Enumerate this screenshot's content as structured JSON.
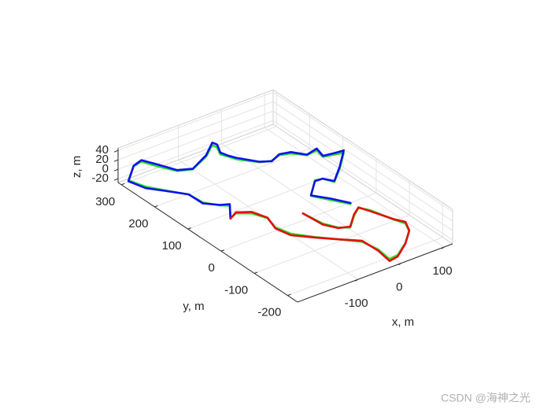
{
  "chart_data": {
    "type": "line3d",
    "xlabel": "x, m",
    "ylabel": "y, m",
    "zlabel": "z, m",
    "xlim": [
      -240,
      120
    ],
    "ylim": [
      -230,
      310
    ],
    "zlim": [
      -28,
      45
    ],
    "xticks": [
      -100,
      0,
      100
    ],
    "yticks": [
      -200,
      -100,
      0,
      100,
      200,
      300
    ],
    "zticks": [
      -20,
      0,
      20,
      40
    ],
    "grid": true,
    "series": [
      {
        "color": "#22dd22",
        "x": [
          28,
          7,
          -13,
          28,
          43,
          53,
          91,
          132,
          115,
          92,
          97,
          72,
          52,
          31,
          7,
          -14,
          -42,
          -48,
          -55,
          -44,
          -46,
          -81,
          -129,
          -156,
          -175,
          -188,
          -210,
          -249,
          -238,
          -217,
          -191,
          -188,
          -169,
          -155,
          -182,
          -163,
          -140,
          -127,
          -136,
          -127,
          -99,
          -69,
          -39,
          -33,
          -37,
          -16,
          22,
          54,
          66,
          57,
          43,
          31,
          7,
          -25,
          -43,
          -57,
          -64
        ],
        "y": [
          -42,
          -9,
          24,
          65,
          61,
          39,
          72,
          113,
          118,
          124,
          149,
          146,
          168,
          176,
          168,
          177,
          211,
          227,
          242,
          266,
          278,
          251,
          229,
          241,
          276,
          307,
          302,
          267,
          230,
          198,
          161,
          122,
          95,
          84,
          47,
          55,
          38,
          7,
          -29,
          -64,
          -99,
          -131,
          -164,
          -204,
          -244,
          -241,
          -215,
          -185,
          -158,
          -134,
          -81,
          -62,
          -80,
          -110,
          -97,
          -69,
          -18
        ],
        "z": [
          0,
          0,
          0,
          0,
          0,
          0,
          0,
          0,
          0,
          0,
          0,
          0,
          0,
          0,
          0,
          0,
          0,
          0,
          0,
          0,
          0,
          0,
          0,
          0,
          0,
          0,
          0,
          0,
          0,
          0,
          0,
          0,
          0,
          0,
          0,
          0,
          0,
          0,
          0,
          0,
          0,
          0,
          0,
          0,
          0,
          0,
          0,
          0,
          0,
          0,
          0,
          0,
          0,
          0,
          0,
          0,
          0
        ]
      },
      {
        "color": "#1010ee",
        "x": [
          28,
          7,
          -13,
          28,
          43,
          53,
          91,
          132,
          115,
          92,
          97,
          72,
          52,
          31,
          7,
          -14,
          -42,
          -48,
          -55,
          -44,
          -46,
          -81,
          -129,
          -156,
          -175,
          -188,
          -210,
          -249,
          -238,
          -217,
          -191,
          -188,
          -169,
          -155,
          -182
        ],
        "y": [
          -42,
          -9,
          24,
          65,
          61,
          39,
          72,
          113,
          118,
          124,
          149,
          146,
          168,
          176,
          168,
          177,
          211,
          227,
          242,
          266,
          278,
          251,
          229,
          241,
          276,
          307,
          302,
          267,
          230,
          198,
          161,
          122,
          95,
          84,
          47
        ],
        "z": [
          2,
          3,
          1,
          -2,
          0,
          2,
          4,
          5,
          3,
          2,
          4,
          1,
          3,
          2,
          -1,
          1,
          3,
          2,
          4,
          6,
          5,
          3,
          1,
          2,
          4,
          3,
          1,
          -2,
          -3,
          -1,
          0,
          -2,
          1,
          3,
          -1
        ]
      },
      {
        "color": "#e01010",
        "x": [
          -182,
          -163,
          -140,
          -127,
          -136,
          -127,
          -99,
          -69,
          -39,
          -33,
          -37,
          -16,
          22,
          54,
          66,
          57,
          43,
          31,
          7,
          -25,
          -43,
          -57,
          -64
        ],
        "y": [
          47,
          55,
          38,
          7,
          -29,
          -64,
          -99,
          -131,
          -164,
          -204,
          -244,
          -241,
          -215,
          -185,
          -158,
          -134,
          -81,
          -62,
          -80,
          -110,
          -97,
          -69,
          -18
        ],
        "z": [
          -1,
          2,
          3,
          1,
          -2,
          -3,
          -1,
          0,
          2,
          -2,
          -4,
          -3,
          -1,
          2,
          3,
          1,
          -2,
          1,
          3,
          2,
          -1,
          -2,
          0
        ]
      }
    ]
  },
  "watermark": "CSDN @海神之光"
}
